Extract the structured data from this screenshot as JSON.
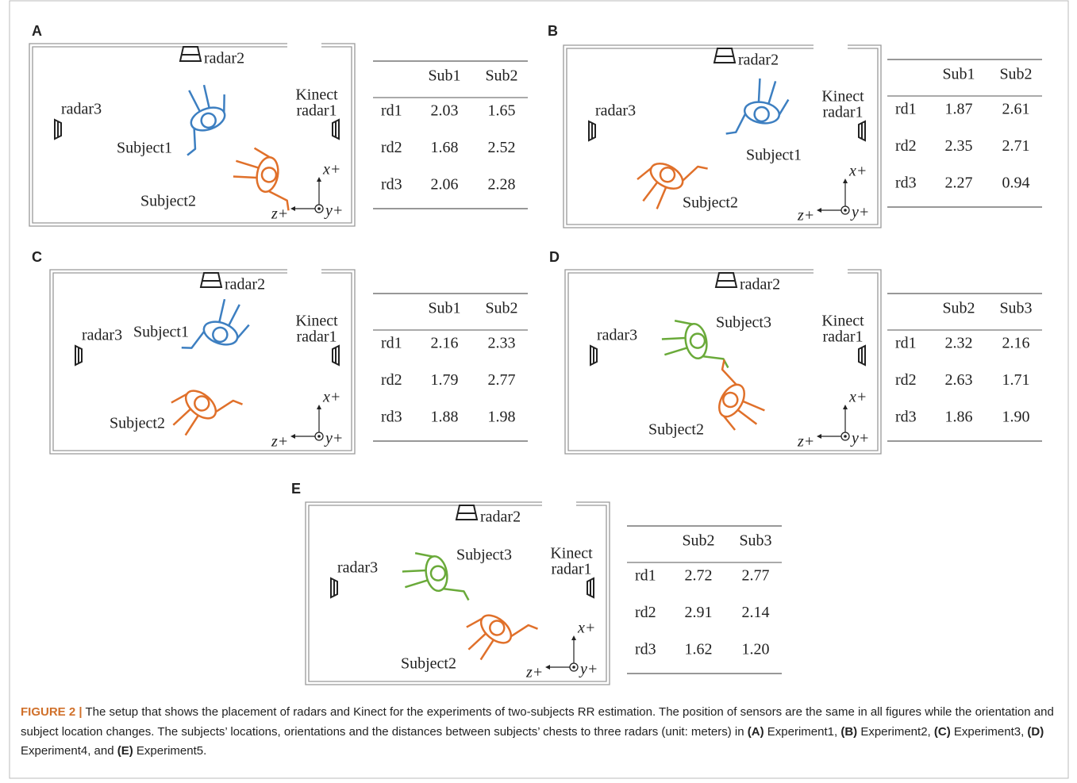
{
  "panels": [
    {
      "label": "A",
      "diagram": {
        "radar2": "radar2",
        "radar3": "radar3",
        "kinect": "Kinect",
        "radar1": "radar1",
        "axes": {
          "x": "x+",
          "y": "y+",
          "z": "z+"
        },
        "subjects": [
          {
            "label": "Subject1",
            "color": "#3d7fc1"
          },
          {
            "label": "Subject2",
            "color": "#e0702a"
          }
        ]
      },
      "table": {
        "header": [
          "Sub1",
          "Sub2"
        ],
        "rows": [
          [
            "rd1",
            "2.03",
            "1.65"
          ],
          [
            "rd2",
            "1.68",
            "2.52"
          ],
          [
            "rd3",
            "2.06",
            "2.28"
          ]
        ]
      }
    },
    {
      "label": "B",
      "diagram": {
        "radar2": "radar2",
        "radar3": "radar3",
        "kinect": "Kinect",
        "radar1": "radar1",
        "axes": {
          "x": "x+",
          "y": "y+",
          "z": "z+"
        },
        "subjects": [
          {
            "label": "Subject1",
            "color": "#3d7fc1"
          },
          {
            "label": "Subject2",
            "color": "#e0702a"
          }
        ]
      },
      "table": {
        "header": [
          "Sub1",
          "Sub2"
        ],
        "rows": [
          [
            "rd1",
            "1.87",
            "2.61"
          ],
          [
            "rd2",
            "2.35",
            "2.71"
          ],
          [
            "rd3",
            "2.27",
            "0.94"
          ]
        ]
      }
    },
    {
      "label": "C",
      "diagram": {
        "radar2": "radar2",
        "radar3": "radar3",
        "kinect": "Kinect",
        "radar1": "radar1",
        "axes": {
          "x": "x+",
          "y": "y+",
          "z": "z+"
        },
        "subjects": [
          {
            "label": "Subject1",
            "color": "#3d7fc1"
          },
          {
            "label": "Subject2",
            "color": "#e0702a"
          }
        ]
      },
      "table": {
        "header": [
          "Sub1",
          "Sub2"
        ],
        "rows": [
          [
            "rd1",
            "2.16",
            "2.33"
          ],
          [
            "rd2",
            "1.79",
            "2.77"
          ],
          [
            "rd3",
            "1.88",
            "1.98"
          ]
        ]
      }
    },
    {
      "label": "D",
      "diagram": {
        "radar2": "radar2",
        "radar3": "radar3",
        "kinect": "Kinect",
        "radar1": "radar1",
        "axes": {
          "x": "x+",
          "y": "y+",
          "z": "z+"
        },
        "subjects": [
          {
            "label": "Subject3",
            "color": "#6aaa3a"
          },
          {
            "label": "Subject2",
            "color": "#e0702a"
          }
        ]
      },
      "table": {
        "header": [
          "Sub2",
          "Sub3"
        ],
        "rows": [
          [
            "rd1",
            "2.32",
            "2.16"
          ],
          [
            "rd2",
            "2.63",
            "1.71"
          ],
          [
            "rd3",
            "1.86",
            "1.90"
          ]
        ]
      }
    },
    {
      "label": "E",
      "diagram": {
        "radar2": "radar2",
        "radar3": "radar3",
        "kinect": "Kinect",
        "radar1": "radar1",
        "axes": {
          "x": "x+",
          "y": "y+",
          "z": "z+"
        },
        "subjects": [
          {
            "label": "Subject3",
            "color": "#6aaa3a"
          },
          {
            "label": "Subject2",
            "color": "#e0702a"
          }
        ]
      },
      "table": {
        "header": [
          "Sub2",
          "Sub3"
        ],
        "rows": [
          [
            "rd1",
            "2.72",
            "2.77"
          ],
          [
            "rd2",
            "2.91",
            "2.14"
          ],
          [
            "rd3",
            "1.62",
            "1.20"
          ]
        ]
      }
    }
  ],
  "caption": {
    "label": "FIGURE 2 |",
    "parts": [
      {
        "text": " The setup that shows the placement of radars and Kinect for the experiments of two-subjects RR estimation. The position of sensors are the same in all figures while the orientation and subject location changes. The subjects’ locations, orientations and the distances between subjects’ chests to three radars (unit: meters) in ",
        "bold": false
      },
      {
        "text": "(A)",
        "bold": true
      },
      {
        "text": " Experiment1, ",
        "bold": false
      },
      {
        "text": "(B)",
        "bold": true
      },
      {
        "text": " Experiment2, ",
        "bold": false
      },
      {
        "text": "(C)",
        "bold": true
      },
      {
        "text": " Experiment3, ",
        "bold": false
      },
      {
        "text": "(D)",
        "bold": true
      },
      {
        "text": " Experiment4, and ",
        "bold": false
      },
      {
        "text": "(E)",
        "bold": true
      },
      {
        "text": " Experiment5.",
        "bold": false
      }
    ]
  }
}
